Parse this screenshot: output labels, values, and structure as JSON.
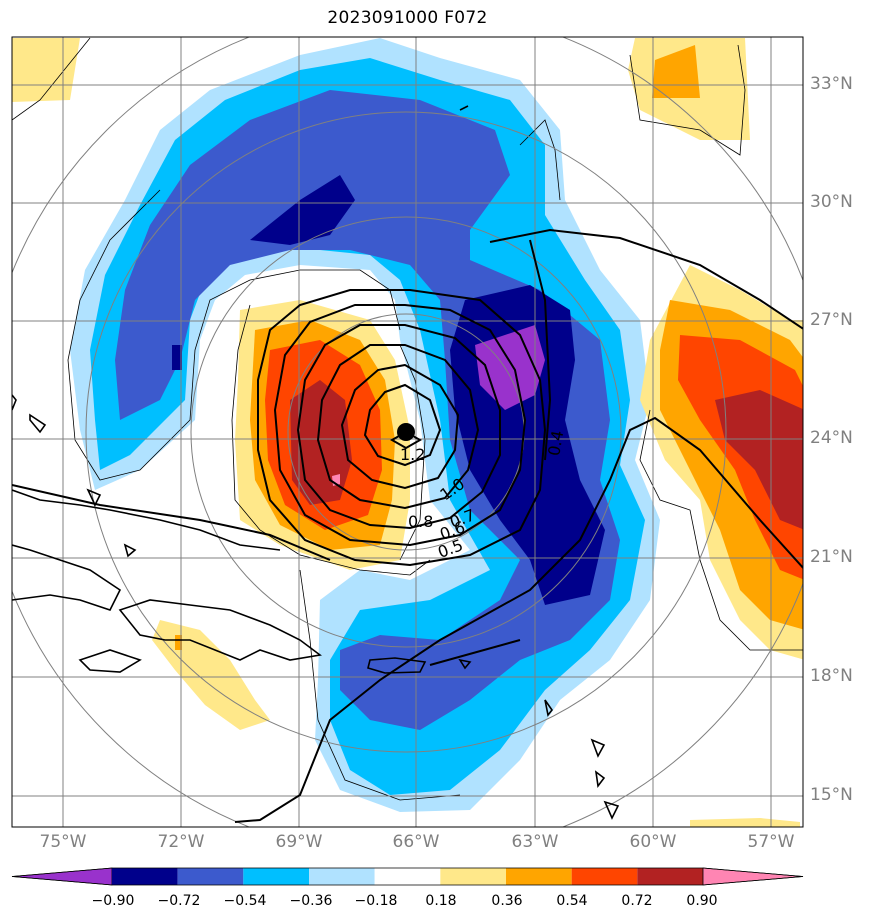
{
  "title": "2023091000 F072",
  "lat_labels": [
    "33°N",
    "30°N",
    "27°N",
    "24°N",
    "21°N",
    "18°N",
    "15°N"
  ],
  "lon_labels": [
    "75°W",
    "72°W",
    "69°W",
    "66°W",
    "63°W",
    "60°W",
    "57°W"
  ],
  "contour_labels": [
    "1.2",
    "1.0",
    "0.8",
    "0.7",
    "0.6",
    "0.5",
    "0.4"
  ],
  "colorbar": {
    "ticks": [
      "−0.90",
      "−0.72",
      "−0.54",
      "−0.36",
      "−0.18",
      "0.18",
      "0.36",
      "0.54",
      "0.72",
      "0.90"
    ],
    "colors": [
      "#9932cc",
      "#00008b",
      "#3c5acd",
      "#00bfff",
      "#b0e2ff",
      "#ffffff",
      "#ffe88a",
      "#ffa500",
      "#ff4500",
      "#b22222",
      "#ff85b3"
    ]
  },
  "palette": {
    "purple": "#9932cc",
    "navy": "#00008b",
    "royal_blue": "#3c5acd",
    "deep_sky": "#00bfff",
    "light_blue": "#b0e2ff",
    "light_yellow": "#ffe88a",
    "orange": "#ffa500",
    "orange_red": "#ff4500",
    "firebrick": "#b22222",
    "pink": "#ff85b3",
    "grid": "#808080",
    "text_gray": "#808080"
  }
}
